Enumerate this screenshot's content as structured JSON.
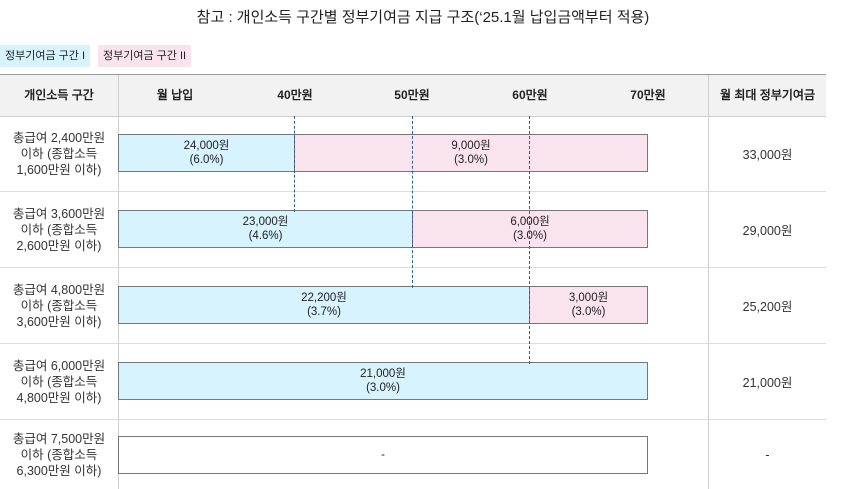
{
  "title": "참고 : 개인소득 구간별 정부기여금 지급 구조(‘25.1월 납입금액부터 적용)",
  "legend": {
    "tier1": "정부기여금 구간 I",
    "tier2": "정부기여금 구간 II"
  },
  "colors": {
    "tier1": "#d7f3fd",
    "tier2": "#f9e3ec"
  },
  "header": {
    "income_bracket": "개인소득 구간",
    "monthly_payment": "월 납입",
    "tick_40": "40만원",
    "tick_50": "50만원",
    "tick_60": "60만원",
    "tick_70": "70만원",
    "max_contribution": "월 최대 정부기여금"
  },
  "rows": [
    {
      "label": [
        "총급여 2,400만원",
        "이하 (종합소득",
        "1,600만원 이하)"
      ],
      "tier1_amount": "24,000원",
      "tier1_rate": "(6.0%)",
      "tier2_amount": "9,000원",
      "tier2_rate": "(3.0%)",
      "max": "33,000원"
    },
    {
      "label": [
        "총급여 3,600만원",
        "이하 (종합소득",
        "2,600만원 이하)"
      ],
      "tier1_amount": "23,000원",
      "tier1_rate": "(4.6%)",
      "tier2_amount": "6,000원",
      "tier2_rate": "(3.0%)",
      "max": "29,000원"
    },
    {
      "label": [
        "총급여 4,800만원",
        "이하 (종합소득",
        "3,600만원 이하)"
      ],
      "tier1_amount": "22,200원",
      "tier1_rate": "(3.7%)",
      "tier2_amount": "3,000원",
      "tier2_rate": "(3.0%)",
      "max": "25,200원"
    },
    {
      "label": [
        "총급여 6,000만원",
        "이하 (종합소득",
        "4,800만원 이하)"
      ],
      "tier1_amount": "21,000원",
      "tier1_rate": "(3.0%)",
      "max": "21,000원"
    },
    {
      "label": [
        "총급여 7,500만원",
        "이하 (종합소득",
        "6,300만원 이하)"
      ],
      "none": "-",
      "max": "-"
    }
  ]
}
